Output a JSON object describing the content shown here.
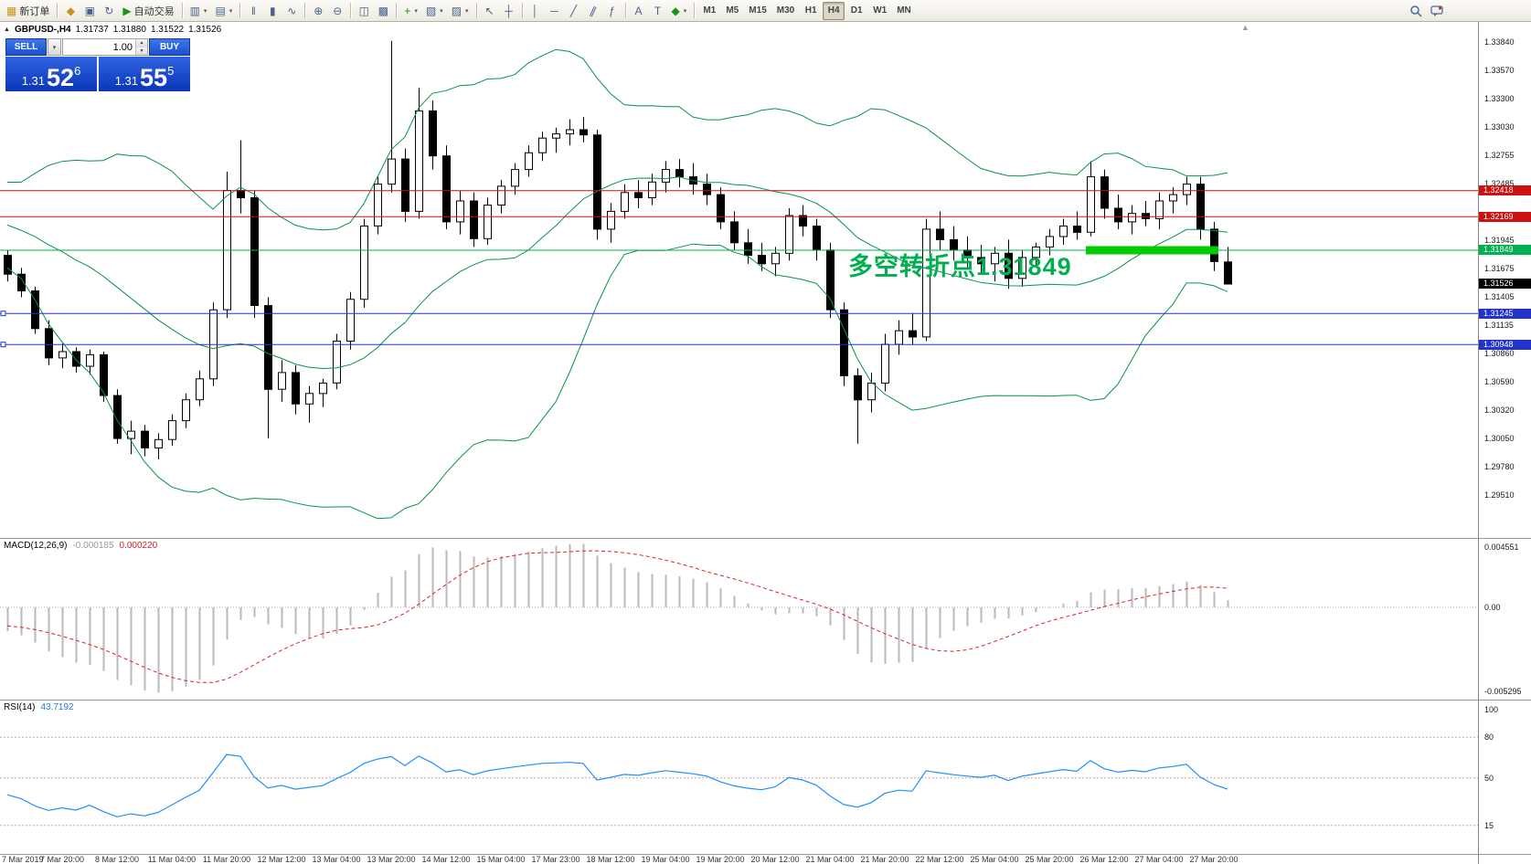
{
  "colors": {
    "bollinger": "#089444",
    "candle_up": "#ffffff",
    "candle_down": "#000000",
    "macd_hist": "#b9b9b9",
    "macd_signal": "#dd2222",
    "rsi_line": "#1e90ff",
    "rsi_levels": "#cfa0a0",
    "current_price_bg": "#000000"
  },
  "icons": {
    "new_order": "▦",
    "market_watch": "◆",
    "data_window": "▣",
    "navigator": "↻",
    "autotrading_play": "▶",
    "new_chart": "▥",
    "profiles": "▤",
    "bar_chart": "‖",
    "candle_chart": "▮",
    "line_chart": "∿",
    "zoom_in": "⊕",
    "zoom_out": "⊖",
    "tile_windows": "◫",
    "cascade_windows": "▩",
    "indicators_plus": "+",
    "periods": "▧",
    "templates": "▨",
    "dropdown": "▾",
    "cursor": "↖",
    "crosshair": "┼",
    "vline": "│",
    "hline": "─",
    "trendline": "╱",
    "channel": "∥",
    "fibonacci": "ƒ",
    "text": "A",
    "text_label": "T",
    "shapes": "◆",
    "collapse_up": "▲",
    "spin_up": "▴",
    "spin_down": "▾",
    "shift_marker": "▲"
  },
  "toolbar": {
    "new_order_label": "新订单",
    "autotrading_label": "自动交易",
    "timeframes": [
      "M1",
      "M5",
      "M15",
      "M30",
      "H1",
      "H4",
      "D1",
      "W1",
      "MN"
    ],
    "active_timeframe": "H4"
  },
  "chart": {
    "header": {
      "symbol": "GBPUSD-,H4",
      "open": "1.31737",
      "high": "1.31880",
      "low": "1.31522",
      "close": "1.31526"
    },
    "trade_panel": {
      "sell_label": "SELL",
      "buy_label": "BUY",
      "volume": "1.00",
      "sell_price": {
        "base": "1.31",
        "big": "52",
        "sup": "6"
      },
      "buy_price": {
        "base": "1.31",
        "big": "55",
        "sup": "5"
      }
    },
    "annotation": {
      "text": "多空转折点1.31849",
      "color": "#00b050"
    },
    "hlines": [
      {
        "price": 1.32418,
        "label": "1.32418",
        "color": "#cc1111"
      },
      {
        "price": 1.32169,
        "label": "1.32169",
        "color": "#cc1111"
      },
      {
        "price": 1.31849,
        "label": "1.31849",
        "color": "#00b050"
      },
      {
        "price": 1.31245,
        "label": "1.31245",
        "color": "#2233cc",
        "handles": true
      },
      {
        "price": 1.30948,
        "label": "1.30948",
        "color": "#2233cc",
        "handles": true
      }
    ],
    "current_price": {
      "price": 1.31526,
      "label": "1.31526"
    },
    "highlight": {
      "price": 1.31849,
      "from_bar": 79,
      "to_bar": 88,
      "color": "#00cc00"
    },
    "scale_ticks": [
      "1.33840",
      "1.33570",
      "1.33300",
      "1.33030",
      "1.32755",
      "1.32485",
      "1.31945",
      "1.31675",
      "1.31405",
      "1.31135",
      "1.30860",
      "1.30590",
      "1.30320",
      "1.30050",
      "1.29780",
      "1.29510"
    ]
  },
  "chart_data": {
    "type": "candlestick",
    "symbol": "GBPUSD",
    "period": "H4",
    "y_range": [
      1.291,
      1.3403
    ],
    "x_label_every_n_bars": 4,
    "x_labels": [
      "7 Mar 2019",
      "7 Mar 20:00",
      "8 Mar 12:00",
      "11 Mar 04:00",
      "11 Mar 20:00",
      "12 Mar 12:00",
      "13 Mar 04:00",
      "13 Mar 20:00",
      "14 Mar 12:00",
      "15 Mar 04:00",
      "17 Mar 23:00",
      "18 Mar 12:00",
      "19 Mar 04:00",
      "19 Mar 20:00",
      "20 Mar 12:00",
      "21 Mar 04:00",
      "21 Mar 20:00",
      "22 Mar 12:00",
      "25 Mar 04:00",
      "25 Mar 20:00",
      "26 Mar 12:00",
      "27 Mar 04:00",
      "27 Mar 20:00"
    ],
    "ohlc": [
      [
        1.318,
        1.3185,
        1.3155,
        1.3162
      ],
      [
        1.3162,
        1.3168,
        1.314,
        1.3146
      ],
      [
        1.3146,
        1.315,
        1.3105,
        1.311
      ],
      [
        1.311,
        1.3118,
        1.3075,
        1.3082
      ],
      [
        1.3082,
        1.3096,
        1.3072,
        1.3088
      ],
      [
        1.3088,
        1.3092,
        1.3068,
        1.3074
      ],
      [
        1.3074,
        1.309,
        1.3066,
        1.3085
      ],
      [
        1.3085,
        1.3088,
        1.304,
        1.3046
      ],
      [
        1.3046,
        1.3052,
        1.3,
        1.3005
      ],
      [
        1.3005,
        1.3022,
        1.299,
        1.3012
      ],
      [
        1.3012,
        1.3018,
        1.2988,
        1.2996
      ],
      [
        1.2996,
        1.301,
        1.2985,
        1.3004
      ],
      [
        1.3004,
        1.3028,
        1.2998,
        1.3022
      ],
      [
        1.3022,
        1.3048,
        1.3015,
        1.3042
      ],
      [
        1.3042,
        1.307,
        1.3036,
        1.3062
      ],
      [
        1.3062,
        1.3135,
        1.3055,
        1.3128
      ],
      [
        1.3128,
        1.326,
        1.312,
        1.3242
      ],
      [
        1.3242,
        1.329,
        1.322,
        1.3235
      ],
      [
        1.3235,
        1.3242,
        1.312,
        1.3132
      ],
      [
        1.3132,
        1.314,
        1.3005,
        1.3052
      ],
      [
        1.3052,
        1.308,
        1.304,
        1.3068
      ],
      [
        1.3068,
        1.3075,
        1.3028,
        1.3038
      ],
      [
        1.3038,
        1.3055,
        1.302,
        1.3048
      ],
      [
        1.3048,
        1.3062,
        1.3035,
        1.3058
      ],
      [
        1.3058,
        1.3105,
        1.3052,
        1.3098
      ],
      [
        1.3098,
        1.3145,
        1.309,
        1.3138
      ],
      [
        1.3138,
        1.3215,
        1.313,
        1.3208
      ],
      [
        1.3208,
        1.3255,
        1.32,
        1.3248
      ],
      [
        1.3248,
        1.3385,
        1.324,
        1.3272
      ],
      [
        1.3272,
        1.3282,
        1.3212,
        1.3222
      ],
      [
        1.3222,
        1.334,
        1.3215,
        1.3318
      ],
      [
        1.3318,
        1.3328,
        1.3262,
        1.3275
      ],
      [
        1.3275,
        1.3285,
        1.3205,
        1.3212
      ],
      [
        1.3212,
        1.3242,
        1.32,
        1.3232
      ],
      [
        1.3232,
        1.324,
        1.3188,
        1.3196
      ],
      [
        1.3196,
        1.3235,
        1.319,
        1.3228
      ],
      [
        1.3228,
        1.3252,
        1.322,
        1.3246
      ],
      [
        1.3246,
        1.3268,
        1.3238,
        1.3262
      ],
      [
        1.3262,
        1.3285,
        1.3255,
        1.3278
      ],
      [
        1.3278,
        1.3298,
        1.327,
        1.3292
      ],
      [
        1.3292,
        1.3302,
        1.3278,
        1.3296
      ],
      [
        1.3296,
        1.331,
        1.3285,
        1.33
      ],
      [
        1.33,
        1.3312,
        1.3288,
        1.3295
      ],
      [
        1.3295,
        1.33,
        1.3195,
        1.3205
      ],
      [
        1.3205,
        1.323,
        1.3192,
        1.3222
      ],
      [
        1.3222,
        1.3248,
        1.3215,
        1.324
      ],
      [
        1.324,
        1.3252,
        1.3225,
        1.3235
      ],
      [
        1.3235,
        1.3258,
        1.3228,
        1.325
      ],
      [
        1.325,
        1.327,
        1.324,
        1.3262
      ],
      [
        1.3262,
        1.3272,
        1.3245,
        1.3255
      ],
      [
        1.3255,
        1.3268,
        1.3238,
        1.3248
      ],
      [
        1.3248,
        1.3258,
        1.3228,
        1.3238
      ],
      [
        1.3238,
        1.3245,
        1.3205,
        1.3212
      ],
      [
        1.3212,
        1.3222,
        1.3185,
        1.3192
      ],
      [
        1.3192,
        1.3205,
        1.3172,
        1.318
      ],
      [
        1.318,
        1.3192,
        1.3165,
        1.3172
      ],
      [
        1.3172,
        1.3188,
        1.316,
        1.3182
      ],
      [
        1.3182,
        1.3225,
        1.3175,
        1.3218
      ],
      [
        1.3218,
        1.3228,
        1.3198,
        1.3208
      ],
      [
        1.3208,
        1.3215,
        1.3175,
        1.3185
      ],
      [
        1.3185,
        1.3192,
        1.312,
        1.3128
      ],
      [
        1.3128,
        1.3135,
        1.3055,
        1.3065
      ],
      [
        1.3065,
        1.3072,
        1.3,
        1.3042
      ],
      [
        1.3042,
        1.3068,
        1.303,
        1.3058
      ],
      [
        1.3058,
        1.3105,
        1.305,
        1.3095
      ],
      [
        1.3095,
        1.3118,
        1.3085,
        1.3108
      ],
      [
        1.3108,
        1.3125,
        1.3095,
        1.3102
      ],
      [
        1.3102,
        1.3215,
        1.3098,
        1.3205
      ],
      [
        1.3205,
        1.3222,
        1.3185,
        1.3195
      ],
      [
        1.3195,
        1.3208,
        1.3175,
        1.3185
      ],
      [
        1.3185,
        1.3198,
        1.3168,
        1.3178
      ],
      [
        1.3178,
        1.319,
        1.3162,
        1.3172
      ],
      [
        1.3172,
        1.3188,
        1.3155,
        1.3182
      ],
      [
        1.3182,
        1.3195,
        1.3148,
        1.3158
      ],
      [
        1.3158,
        1.3185,
        1.315,
        1.3178
      ],
      [
        1.3178,
        1.3192,
        1.3168,
        1.3188
      ],
      [
        1.3188,
        1.3205,
        1.318,
        1.3198
      ],
      [
        1.3198,
        1.3215,
        1.319,
        1.3208
      ],
      [
        1.3208,
        1.3222,
        1.3195,
        1.3202
      ],
      [
        1.3202,
        1.327,
        1.3198,
        1.3255
      ],
      [
        1.3255,
        1.3262,
        1.3215,
        1.3225
      ],
      [
        1.3225,
        1.3238,
        1.3205,
        1.3212
      ],
      [
        1.3212,
        1.3228,
        1.32,
        1.322
      ],
      [
        1.322,
        1.3232,
        1.3208,
        1.3215
      ],
      [
        1.3215,
        1.324,
        1.3205,
        1.3232
      ],
      [
        1.3232,
        1.3245,
        1.322,
        1.3238
      ],
      [
        1.3238,
        1.3255,
        1.3228,
        1.3248
      ],
      [
        1.3248,
        1.3255,
        1.3195,
        1.3205
      ],
      [
        1.3205,
        1.3212,
        1.3165,
        1.3174
      ],
      [
        1.31737,
        1.3188,
        1.31522,
        1.31526
      ]
    ],
    "indicators": {
      "bollinger": {
        "period": 20,
        "deviation": 2
      },
      "macd": {
        "label": "MACD(12,26,9)",
        "value": "-0.000185",
        "signal_value": "0.000220",
        "scale_max": "0.004551",
        "scale_zero": "0.00",
        "scale_min": "-0.005295"
      },
      "rsi": {
        "label": "RSI(14)",
        "value": "43.7192",
        "scale": [
          "100",
          "80",
          "50",
          "15"
        ],
        "levels": [
          80,
          50,
          15
        ]
      }
    }
  }
}
